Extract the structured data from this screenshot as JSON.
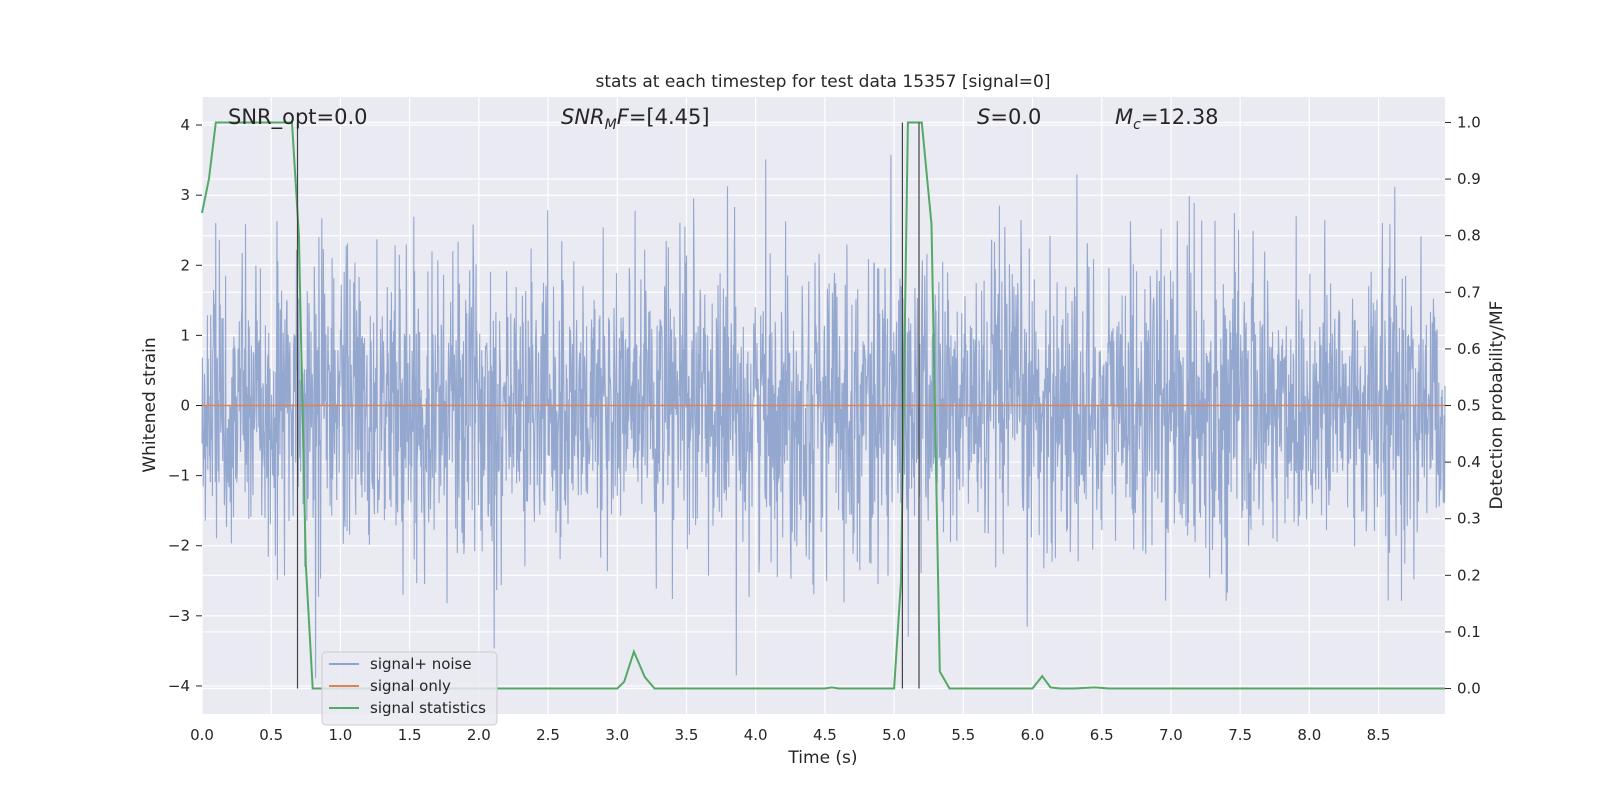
{
  "chart_data": {
    "type": "line",
    "title": "stats at each timestep for test data 15357 [signal=0]",
    "xlabel": "Time (s)",
    "ylabel": "Whitened strain",
    "y2label": "Detection probability/MF",
    "xlim": [
      0,
      8.98
    ],
    "ylim": [
      -4.4,
      4.4
    ],
    "y2lim": [
      -0.045,
      1.045
    ],
    "x_ticks": [
      "0.0",
      "0.5",
      "1.0",
      "1.5",
      "2.0",
      "2.5",
      "3.0",
      "3.5",
      "4.0",
      "4.5",
      "5.0",
      "5.5",
      "6.0",
      "6.5",
      "7.0",
      "7.5",
      "8.0",
      "8.5"
    ],
    "y_ticks": [
      "4",
      "3",
      "2",
      "1",
      "0",
      "−1",
      "−2",
      "−3",
      "−4"
    ],
    "y2_ticks": [
      "1.0",
      "0.9",
      "0.8",
      "0.7",
      "0.6",
      "0.5",
      "0.4",
      "0.3",
      "0.2",
      "0.1",
      "0.0"
    ],
    "grid": true,
    "legend_position": "lower-left",
    "annotations": [
      {
        "text": "SNR_opt=0.0"
      },
      {
        "text": "SNRₘF=[4.45]",
        "base": "SNR",
        "sub": "M",
        "rest": "F=[4.45]"
      },
      {
        "text": "S=0.0",
        "italic": "S",
        "rest": "=0.0"
      },
      {
        "text": "Mᴄ=12.38",
        "italic": "M",
        "sub": "c",
        "rest": "=12.38"
      }
    ],
    "vlines_x": [
      0.69,
      5.06,
      5.18
    ],
    "series": [
      {
        "name": "signal+ noise",
        "color": "#8fa3cc",
        "axis": "left",
        "description": "whitened noise, roughly Gaussian with std ~1, peaks near 3.8 and -3.9"
      },
      {
        "name": "signal only",
        "color": "#dd8452",
        "axis": "left",
        "x": [
          0,
          8.98
        ],
        "y": [
          0,
          0
        ]
      },
      {
        "name": "signal statistics",
        "color": "#55a868",
        "axis": "right",
        "x": [
          0.0,
          0.05,
          0.1,
          0.15,
          0.2,
          0.3,
          0.4,
          0.5,
          0.6,
          0.65,
          0.7,
          0.75,
          0.8,
          0.85,
          0.9,
          1.0,
          2.0,
          3.0,
          3.05,
          3.12,
          3.2,
          3.27,
          3.35,
          4.0,
          4.5,
          4.55,
          4.6,
          4.9,
          5.0,
          5.05,
          5.1,
          5.15,
          5.2,
          5.27,
          5.33,
          5.4,
          5.5,
          6.0,
          6.07,
          6.13,
          6.2,
          6.3,
          6.45,
          6.55,
          7.0,
          8.0,
          8.98
        ],
        "y": [
          0.84,
          0.9,
          1.0,
          1.0,
          1.0,
          1.0,
          1.0,
          1.0,
          1.0,
          1.0,
          0.8,
          0.22,
          0.0,
          0.0,
          0.0,
          0.0,
          0.0,
          0.0,
          0.012,
          0.065,
          0.02,
          0.0,
          0.0,
          0.0,
          0.0,
          0.002,
          0.0,
          0.0,
          0.0,
          0.19,
          1.0,
          1.0,
          1.0,
          0.82,
          0.03,
          0.0,
          0.0,
          0.0,
          0.022,
          0.002,
          0.0,
          0.0,
          0.002,
          0.0,
          0.0,
          0.0,
          0.0
        ]
      }
    ]
  }
}
